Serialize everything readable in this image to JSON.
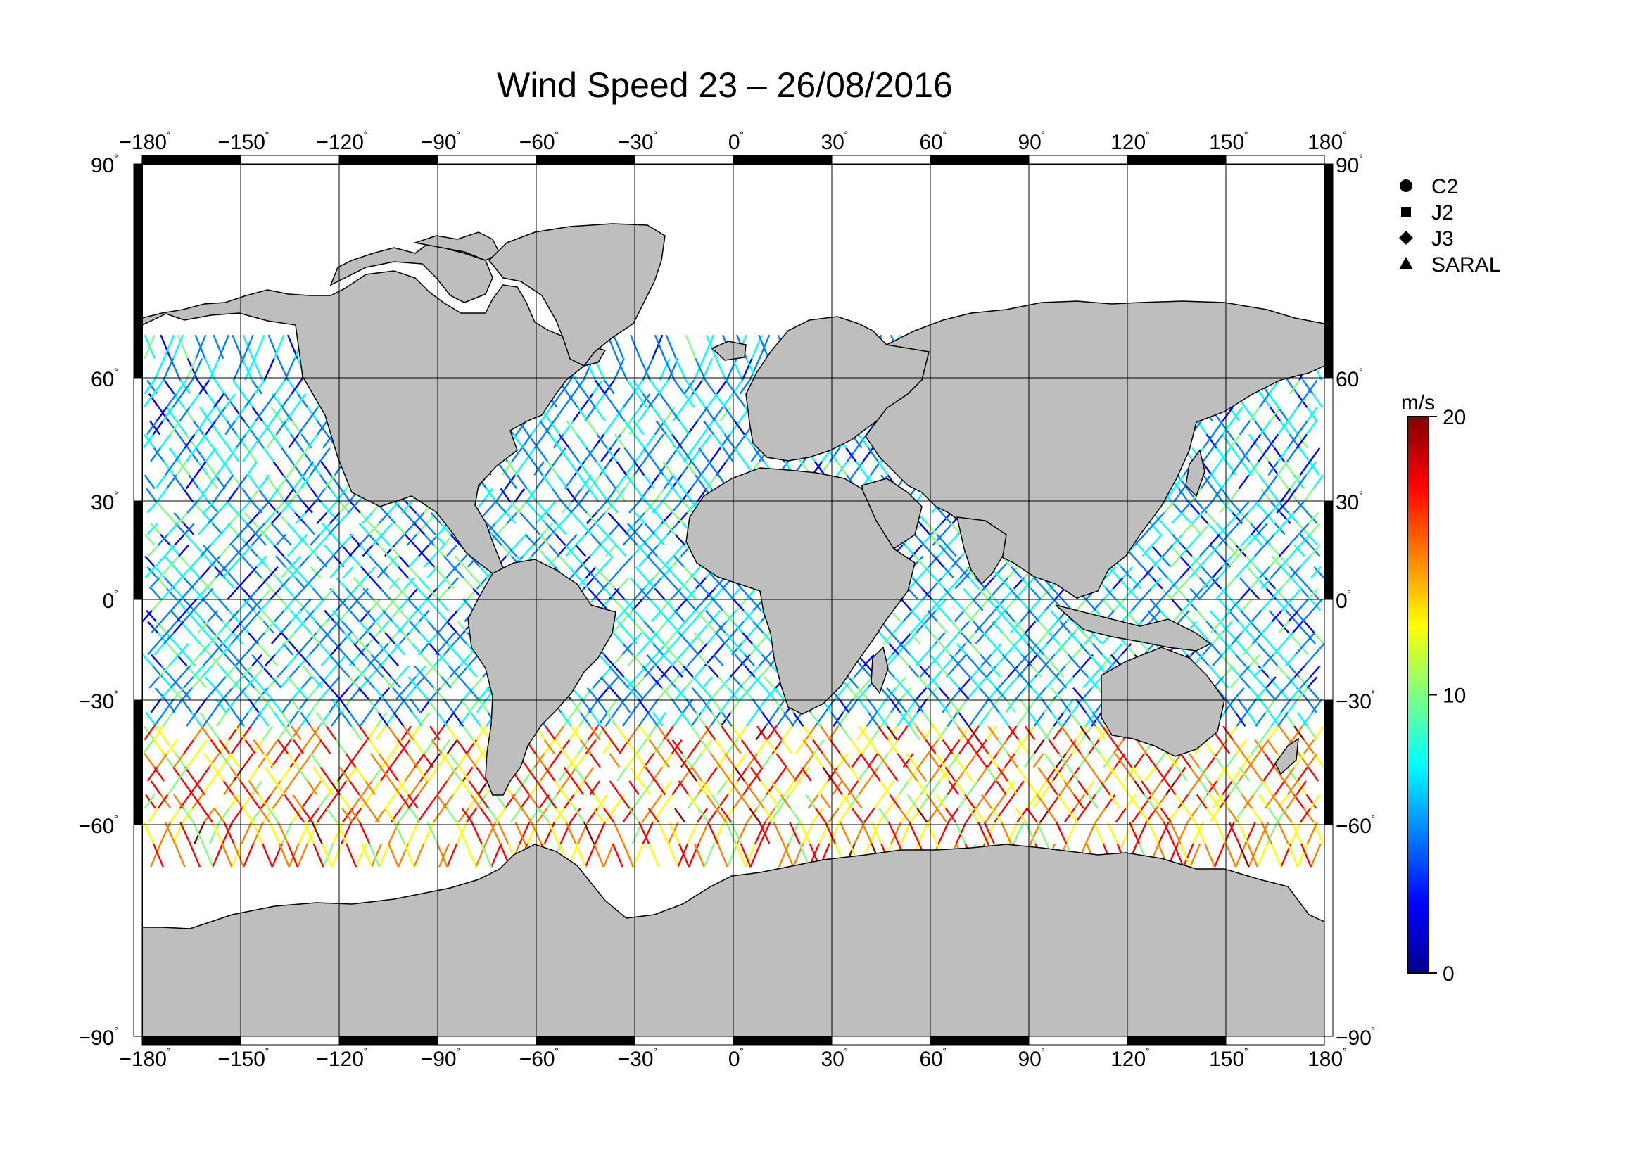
{
  "title": "Wind Speed 23 – 26/08/2016",
  "map": {
    "lon_ticks": [
      "−180",
      "−150",
      "−120",
      "−90",
      "−60",
      "−30",
      "0",
      "30",
      "60",
      "90",
      "120",
      "150",
      "180"
    ],
    "lat_ticks": [
      "90",
      "60",
      "30",
      "0",
      "−30",
      "−60",
      "−90"
    ],
    "lon_range": [
      -180,
      180
    ],
    "lat_range": [
      -90,
      90
    ],
    "degree_symbol": "˚",
    "land_color": "#bebebe",
    "ocean_color": "#ffffff",
    "grid": true
  },
  "legend": {
    "items": [
      {
        "label": "C2",
        "marker": "circle"
      },
      {
        "label": "J2",
        "marker": "square"
      },
      {
        "label": "J3",
        "marker": "diamond"
      },
      {
        "label": "SARAL",
        "marker": "triangle"
      }
    ]
  },
  "colorbar": {
    "unit": "m/s",
    "min": 0,
    "max": 20,
    "ticks": [
      "20",
      "10",
      "0"
    ],
    "colors": [
      "#00008f",
      "#0000ff",
      "#0080ff",
      "#00ffff",
      "#80ff80",
      "#ffff00",
      "#ff8000",
      "#ff0000",
      "#800000"
    ]
  }
}
